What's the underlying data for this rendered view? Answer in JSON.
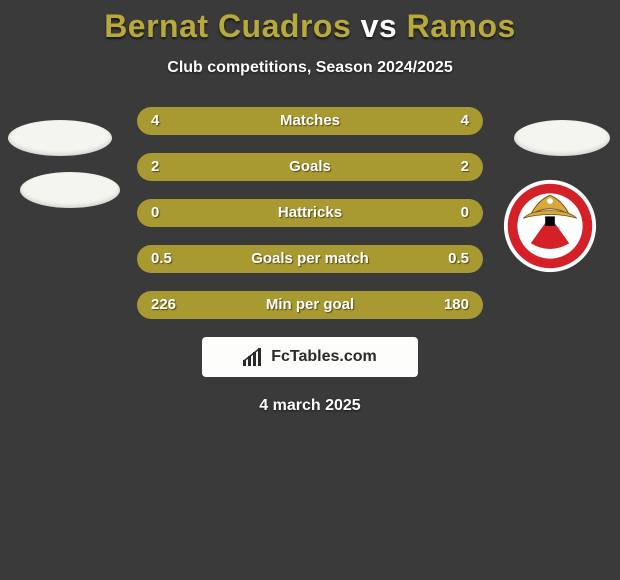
{
  "header": {
    "title_left": "Bernat Cuadros",
    "title_vs": " vs ",
    "title_right": "Ramos",
    "title_color_left": "#b8a93b",
    "title_color_right": "#b8a93b",
    "title_color_vs": "#ffffff",
    "subtitle": "Club competitions, Season 2024/2025"
  },
  "chart": {
    "bar_color_left": "#a89930",
    "bar_color_right": "#a89930",
    "track_color": "#2f2f2f",
    "rows": [
      {
        "label": "Matches",
        "left": "4",
        "right": "4",
        "left_pct": 50,
        "right_pct": 50
      },
      {
        "label": "Goals",
        "left": "2",
        "right": "2",
        "left_pct": 50,
        "right_pct": 50
      },
      {
        "label": "Hattricks",
        "left": "0",
        "right": "0",
        "left_pct": 50,
        "right_pct": 50
      },
      {
        "label": "Goals per match",
        "left": "0.5",
        "right": "0.5",
        "left_pct": 50,
        "right_pct": 50
      },
      {
        "label": "Min per goal",
        "left": "226",
        "right": "180",
        "left_pct": 58,
        "right_pct": 42
      }
    ]
  },
  "watermark": {
    "text": "FcTables.com",
    "icon": "chart-icon"
  },
  "date": "4 march 2025",
  "crest": {
    "outer": "#ffffff",
    "ring": "#d42027",
    "inner": "#000000",
    "eagle": "#d9a93c"
  }
}
